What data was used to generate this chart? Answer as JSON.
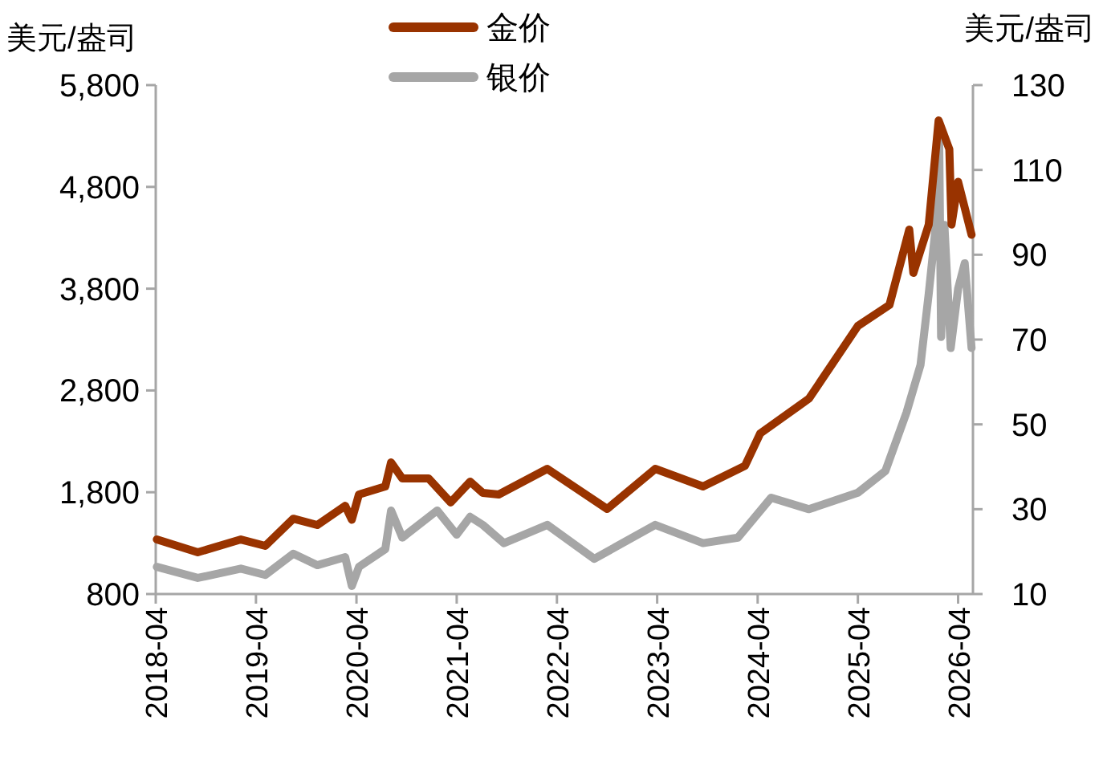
{
  "chart_data": {
    "type": "line",
    "ylabel": "美元/盎司",
    "y2label": "美元/盎司",
    "legend": "top",
    "grid": false,
    "marker": "none",
    "line_style": "solid",
    "xlim": [
      "2018-04-01",
      "2026-05-25"
    ],
    "xticks": [
      {
        "value": "2018-04-01",
        "label": "2018-04"
      },
      {
        "value": "2019-04-01",
        "label": "2019-04"
      },
      {
        "value": "2020-04-01",
        "label": "2020-04"
      },
      {
        "value": "2021-04-01",
        "label": "2021-04"
      },
      {
        "value": "2022-04-01",
        "label": "2022-04"
      },
      {
        "value": "2023-04-01",
        "label": "2023-04"
      },
      {
        "value": "2024-04-01",
        "label": "2024-04"
      },
      {
        "value": "2025-04-01",
        "label": "2025-04"
      },
      {
        "value": "2026-04-01",
        "label": "2026-04"
      }
    ],
    "ylim": [
      800,
      5800
    ],
    "yticks": [
      {
        "value": 800,
        "label": "800"
      },
      {
        "value": 1800,
        "label": "1,800"
      },
      {
        "value": 2800,
        "label": "2,800"
      },
      {
        "value": 3800,
        "label": "3,800"
      },
      {
        "value": 4800,
        "label": "4,800"
      },
      {
        "value": 5800,
        "label": "5,800"
      }
    ],
    "y2lim": [
      10,
      130
    ],
    "y2ticks": [
      10,
      30,
      50,
      70,
      90,
      110,
      130
    ],
    "series": [
      {
        "name": "金价",
        "color": "#993300",
        "x": [
          "2018-04-05",
          "2018-09-01",
          "2019-02-05",
          "2019-05-05",
          "2019-08-15",
          "2019-11-10",
          "2020-02-20",
          "2020-03-15",
          "2020-04-10",
          "2020-07-15",
          "2020-08-05",
          "2020-09-15",
          "2020-12-20",
          "2021-03-10",
          "2021-05-20",
          "2021-07-05",
          "2021-09-01",
          "2022-02-25",
          "2022-10-01",
          "2023-03-25",
          "2023-09-15",
          "2024-02-15",
          "2024-04-10",
          "2024-10-05",
          "2025-04-01",
          "2025-07-25",
          "2025-10-05",
          "2025-10-20",
          "2025-12-15",
          "2026-01-20",
          "2026-02-28",
          "2026-03-08",
          "2026-04-01",
          "2026-05-20"
        ],
        "values": [
          1336,
          1210,
          1336,
          1273,
          1540,
          1478,
          1667,
          1530,
          1778,
          1857,
          2093,
          1935,
          1935,
          1700,
          1904,
          1794,
          1778,
          2030,
          1636,
          2030,
          1857,
          2060,
          2377,
          2720,
          3434,
          3640,
          4380,
          3955,
          4430,
          5453,
          5170,
          4430,
          4850,
          4330
        ]
      },
      {
        "name": "银价",
        "color": "#a6a6a6",
        "axis": "y2",
        "x": [
          "2018-04-05",
          "2018-09-01",
          "2019-02-05",
          "2019-05-05",
          "2019-08-15",
          "2019-11-10",
          "2020-02-20",
          "2020-03-15",
          "2020-04-10",
          "2020-07-15",
          "2020-08-05",
          "2020-09-15",
          "2021-01-20",
          "2021-04-01",
          "2021-05-20",
          "2021-07-05",
          "2021-09-20",
          "2022-02-25",
          "2022-08-15",
          "2023-03-25",
          "2023-09-15",
          "2024-01-20",
          "2024-05-20",
          "2024-10-05",
          "2025-04-01",
          "2025-07-10",
          "2025-09-25",
          "2025-11-15",
          "2025-12-15",
          "2026-01-10",
          "2026-01-22",
          "2026-01-29",
          "2026-02-10",
          "2026-03-05",
          "2026-04-01",
          "2026-04-25",
          "2026-05-20"
        ],
        "values": [
          16.4,
          13.8,
          16,
          14.5,
          19.5,
          16.8,
          18.7,
          11.9,
          16.4,
          20.6,
          29.7,
          23.3,
          29.7,
          24,
          28.2,
          26.3,
          22,
          26.3,
          18.3,
          26.3,
          22,
          23.3,
          32.7,
          30,
          33.9,
          39,
          52.8,
          64,
          80.8,
          97,
          117,
          70.6,
          97,
          68,
          82,
          88,
          68
        ]
      }
    ]
  }
}
